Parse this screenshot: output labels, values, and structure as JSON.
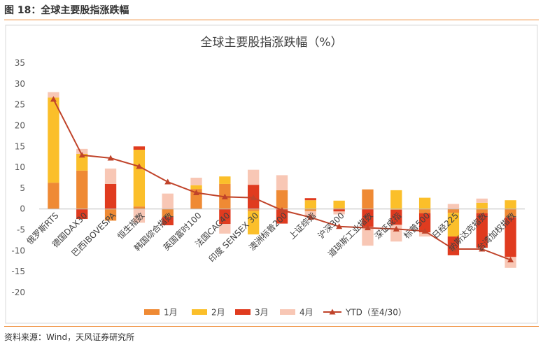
{
  "figure": {
    "caption": "图 18：全球主要股指涨跌幅",
    "source": "资料来源：Wind，天风证券研究所"
  },
  "chart_data": {
    "type": "bar",
    "stacked": true,
    "title": "全球主要股指涨跌幅（%）",
    "xlabel": "",
    "ylabel": "",
    "ylim": [
      -20,
      35
    ],
    "yticks": [
      -20,
      -15,
      -10,
      -5,
      0,
      5,
      10,
      15,
      20,
      25,
      30,
      35
    ],
    "grid": false,
    "legend": "bottom",
    "categories": [
      "俄罗斯RTS",
      "德国DAX30",
      "巴西IBOVESPA",
      "恒生指数",
      "韩国综合指数",
      "英国富时100",
      "法国CAC40",
      "印度 SENSEX 30",
      "澳洲标普200",
      "上证综指",
      "沪深300",
      "道琼斯工业指数",
      "深证成指",
      "标普500",
      "日经225",
      "纳斯达克指数",
      "台湾加权指数"
    ],
    "series": [
      {
        "name": "1月",
        "color": "#ef8a34",
        "values": [
          6.3,
          9.2,
          -2.8,
          0.6,
          -1.9,
          4.8,
          6.0,
          -0.5,
          4.5,
          -0.5,
          0.2,
          4.7,
          -0.2,
          -1.0,
          -0.9,
          -1.0,
          -2.0
        ]
      },
      {
        "name": "2月",
        "color": "#fbbf2a",
        "values": [
          20.4,
          4.0,
          0.0,
          13.6,
          0.0,
          0.9,
          1.8,
          -5.6,
          0.0,
          2.1,
          1.8,
          0.0,
          4.5,
          2.7,
          -5.7,
          1.5,
          2.1
        ]
      },
      {
        "name": "3月",
        "color": "#e03b1f",
        "values": [
          0.0,
          -2.4,
          6.0,
          0.8,
          -2.0,
          0.0,
          -3.6,
          5.8,
          -3.5,
          0.5,
          -0.6,
          -4.3,
          -3.6,
          -4.6,
          -4.5,
          -8.3,
          -9.5
        ]
      },
      {
        "name": "4月",
        "color": "#f8c7b5",
        "values": [
          1.3,
          1.2,
          3.7,
          -3.3,
          3.7,
          1.8,
          -2.3,
          3.6,
          3.6,
          -1.5,
          -0.7,
          -4.5,
          -4.0,
          -1.0,
          1.2,
          1.0,
          -2.6
        ]
      }
    ],
    "ytd": {
      "name": "YTD（至4/30）",
      "color": "#c0432a",
      "values": [
        26.3,
        12.9,
        12.2,
        10.2,
        6.5,
        3.9,
        2.9,
        2.7,
        -0.3,
        -2.0,
        -4.2,
        -4.5,
        -4.8,
        -5.3,
        -9.6,
        -9.6,
        -12.2
      ]
    }
  }
}
